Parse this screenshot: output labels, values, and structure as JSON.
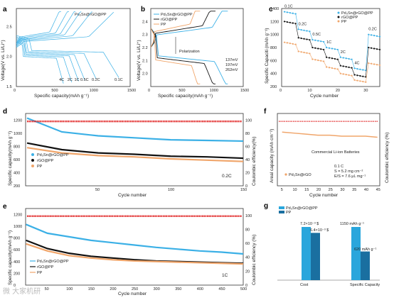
{
  "panels": {
    "a": {
      "label": "a",
      "legend": "Pd₃Sn@rGO@PP",
      "xlabel": "Specific capacity(mAh g⁻¹)",
      "ylabel": "Voltage(V vs. Li/Li⁺)",
      "xticks": [
        "0",
        "500",
        "1000",
        "1500"
      ],
      "yticks": [
        "1.5",
        "2.0",
        "2.5"
      ],
      "rate_labels": [
        "4C",
        "2C",
        "1C",
        "0.5C",
        "0.2C",
        "0.1C"
      ]
    },
    "b": {
      "label": "b",
      "legend": [
        "Pd₃Sn@rGO@PP",
        "rGO@PP",
        "PP"
      ],
      "xlabel": "Specific capacity(mAh g⁻¹)",
      "ylabel": "Voltage(V vs. Li/Li⁺)",
      "xticks": [
        "0",
        "500",
        "1000",
        "1500"
      ],
      "yticks": [
        "2.0",
        "2.1",
        "2.2",
        "2.3",
        "2.4"
      ],
      "polarization": "Polarization",
      "mv_labels": [
        "137mV",
        "197mV",
        "262mV"
      ]
    },
    "c": {
      "label": "c",
      "legend": [
        "Pd₃Sn@rGO@PP",
        "rGO@PP",
        "PP"
      ],
      "xlabel": "Cycle number",
      "ylabel": "Specific Capaciti (mAh g⁻¹)",
      "xticks": [
        "0",
        "10",
        "20",
        "30"
      ],
      "yticks": [
        "200",
        "400",
        "600",
        "800",
        "1000",
        "1200",
        "1400"
      ],
      "rate_labels": [
        "0.1C",
        "0.2C",
        "0.5C",
        "1C",
        "2C",
        "4C",
        "0.2C"
      ]
    },
    "d": {
      "label": "d",
      "legend": [
        "Pd₃Sn@rGO@PP",
        "rGO@PP",
        "PP"
      ],
      "xlabel": "Cycle number",
      "ylabel": "Specific capacity(mAh g⁻¹)",
      "y2label": "Coulombic efficiency(%)",
      "xticks": [
        "50",
        "100",
        "150"
      ],
      "yticks": [
        "200",
        "400",
        "600",
        "800",
        "1000",
        "1200"
      ],
      "y2ticks": [
        "0",
        "20",
        "40",
        "60",
        "80",
        "100"
      ],
      "rate": "0.2C"
    },
    "e": {
      "label": "e",
      "legend": [
        "Pd₃Sn@rGO@PP",
        "rGO@PP",
        "PP"
      ],
      "xlabel": "Cycle number",
      "ylabel": "Specific capacity(mAh g⁻¹)",
      "y2label": "Coulombic efficiency (%)",
      "xticks": [
        "50",
        "100",
        "150",
        "200",
        "250",
        "300",
        "350",
        "400",
        "450",
        "500"
      ],
      "yticks": [
        "0",
        "200",
        "400",
        "600",
        "800",
        "1000",
        "1200"
      ],
      "y2ticks": [
        "0",
        "20",
        "40",
        "60",
        "80",
        "100"
      ],
      "rate": "1C"
    },
    "f": {
      "label": "f",
      "xlabel": "Cycle number",
      "ylabel": "Areal capacity (mAh cm⁻²)",
      "y2label": "Coulombic efficiency (%)",
      "xticks": [
        "5",
        "10",
        "15",
        "20",
        "25",
        "30",
        "35",
        "40",
        "45"
      ],
      "legend": "Pd₃Sn@rGO",
      "title": "Commercial Li-ion Batteries",
      "notes": [
        "0.1 C",
        "S = 5.2 mg cm⁻²",
        "E/S = 7.6 μL mg⁻¹"
      ]
    },
    "g": {
      "label": "g",
      "legend": [
        "Pd₃Sn@rGO@PP",
        "PP"
      ],
      "categories": [
        "Cost",
        "Specific Capacity"
      ],
      "value_labels": [
        "7.2×10⁻³ $",
        "6.4×10⁻³ $",
        "1150 mAh g⁻¹",
        "620 mAh g⁻¹"
      ]
    }
  },
  "colors": {
    "pd": "#3bb0e6",
    "rgo": "#111111",
    "pp": "#f0a56a",
    "ce": "#e02020",
    "g_pd": "#2aa6dc",
    "g_pp": "#1a6fa0"
  },
  "watermark": "微 大家机研",
  "chart_data": [
    {
      "type": "line",
      "panel": "a",
      "title": "",
      "xlabel": "Specific capacity(mAh g⁻¹)",
      "ylabel": "Voltage(V vs. Li/Li⁺)",
      "xlim": [
        0,
        1500
      ],
      "ylim": [
        1.5,
        2.8
      ],
      "series": [
        {
          "name": "0.1C",
          "capacity": 1350
        },
        {
          "name": "0.2C",
          "capacity": 1050
        },
        {
          "name": "0.5C",
          "capacity": 900
        },
        {
          "name": "1C",
          "capacity": 820
        },
        {
          "name": "2C",
          "capacity": 730
        },
        {
          "name": "4C",
          "capacity": 620
        }
      ]
    },
    {
      "type": "line",
      "panel": "b",
      "xlabel": "Specific capacity(mAh g⁻¹)",
      "ylabel": "Voltage(V vs. Li/Li⁺)",
      "xlim": [
        0,
        1500
      ],
      "ylim": [
        1.9,
        2.5
      ],
      "series": [
        {
          "name": "Pd₃Sn@rGO@PP",
          "capacity": 1250,
          "polarization_mV": 137
        },
        {
          "name": "rGO@PP",
          "capacity": 1050,
          "polarization_mV": 197
        },
        {
          "name": "PP",
          "capacity": 800,
          "polarization_mV": 262
        }
      ]
    },
    {
      "type": "scatter",
      "panel": "c",
      "xlabel": "Cycle number",
      "ylabel": "Specific Capaciti (mAh g⁻¹)",
      "xlim": [
        0,
        35
      ],
      "ylim": [
        200,
        1400
      ],
      "rates": [
        "0.1C",
        "0.2C",
        "0.5C",
        "1C",
        "2C",
        "4C",
        "0.2C"
      ],
      "series": [
        {
          "name": "Pd₃Sn@rGO@PP",
          "values": [
            1350,
            1080,
            920,
            800,
            650,
            480,
            1000
          ]
        },
        {
          "name": "rGO@PP",
          "values": [
            1200,
            950,
            800,
            650,
            520,
            380,
            800
          ]
        },
        {
          "name": "PP",
          "values": [
            880,
            740,
            620,
            500,
            400,
            300,
            560
          ]
        }
      ]
    },
    {
      "type": "line",
      "panel": "d",
      "xlabel": "Cycle number",
      "ylabel": "Specific capacity(mAh g⁻¹)",
      "xlim": [
        0,
        150
      ],
      "ylim": [
        200,
        1300
      ],
      "x": [
        1,
        25,
        50,
        75,
        100,
        125,
        150
      ],
      "series": [
        {
          "name": "Pd₃Sn@rGO@PP",
          "values": [
            1230,
            1020,
            960,
            930,
            900,
            890,
            880
          ]
        },
        {
          "name": "rGO@PP",
          "values": [
            850,
            750,
            700,
            680,
            650,
            640,
            620
          ]
        },
        {
          "name": "PP",
          "values": [
            780,
            700,
            660,
            640,
            610,
            590,
            570
          ]
        }
      ],
      "ce_percent": 98
    },
    {
      "type": "line",
      "panel": "e",
      "xlabel": "Cycle number",
      "ylabel": "Specific capacity(mAh g⁻¹)",
      "xlim": [
        0,
        500
      ],
      "ylim": [
        0,
        1300
      ],
      "x": [
        1,
        50,
        100,
        150,
        200,
        250,
        300,
        350,
        400,
        450,
        500
      ],
      "series": [
        {
          "name": "Pd₃Sn@rGO@PP",
          "values": [
            1030,
            880,
            820,
            760,
            720,
            680,
            640,
            610,
            580,
            560,
            530
          ]
        },
        {
          "name": "rGO@PP",
          "values": [
            760,
            620,
            540,
            490,
            460,
            430,
            410,
            400,
            390,
            380,
            370
          ]
        },
        {
          "name": "PP",
          "values": [
            700,
            580,
            500,
            460,
            430,
            410,
            400,
            390,
            380,
            370,
            360
          ]
        }
      ],
      "ce_percent": 99
    },
    {
      "type": "line",
      "panel": "f",
      "xlabel": "Cycle number",
      "ylabel": "Areal capacity (mAh cm⁻²)",
      "xlim": [
        5,
        45
      ],
      "series": [
        {
          "name": "Pd₃Sn@rGO",
          "values": [
            5.2,
            5.1,
            5.0,
            4.9,
            4.9,
            4.8,
            4.8,
            4.8,
            4.7
          ]
        }
      ],
      "ce_percent": 98
    },
    {
      "type": "bar",
      "panel": "g",
      "categories": [
        "Cost",
        "Specific Capacity"
      ],
      "series": [
        {
          "name": "Pd₃Sn@rGO@PP",
          "values": [
            7.2,
            1150
          ]
        },
        {
          "name": "PP",
          "values": [
            6.4,
            620
          ]
        }
      ]
    }
  ]
}
